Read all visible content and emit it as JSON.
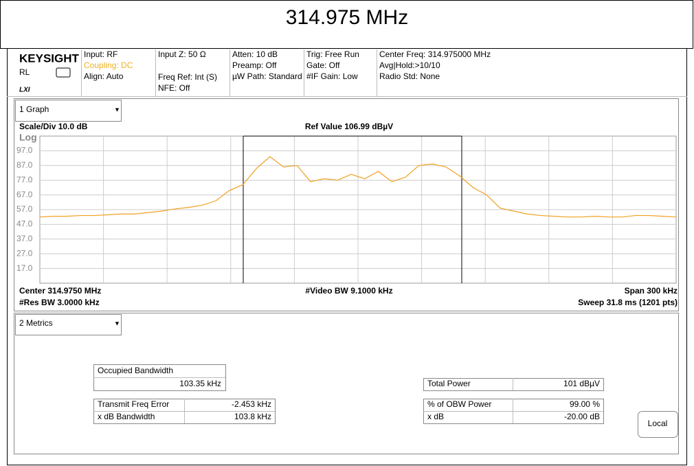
{
  "title": "314.975 MHz",
  "header": {
    "brand": "KEYSIGHT",
    "rl": "RL",
    "lxi": "LXI",
    "columns": [
      [
        "Input: RF",
        "Coupling: DC",
        "Align: Auto"
      ],
      [
        "Input Z: 50 Ω",
        "Freq Ref: Int (S)",
        "NFE: Off"
      ],
      [
        "Atten: 10 dB",
        "Preamp: Off",
        "µW Path: Standard"
      ],
      [
        "Trig: Free Run",
        "Gate: Off",
        "#IF Gain: Low"
      ],
      [
        "Center Freq: 314.975000 MHz",
        "Avg|Hold:>10/10",
        "Radio Std: None"
      ]
    ]
  },
  "graph": {
    "dropdown": "1 Graph",
    "scale": "Scale/Div 10.0 dB",
    "ref": "Ref Value 106.99 dBµV",
    "log": "Log",
    "center": "Center 314.9750 MHz",
    "video_bw": "#Video BW 9.1000 kHz",
    "span": "Span 300 kHz",
    "res_bw": "#Res BW 3.0000 kHz",
    "sweep": "Sweep 31.8 ms (1201 pts)",
    "ylim": [
      6.99,
      106.99
    ],
    "yticks": [
      {
        "value": 96.99,
        "label": "97.0"
      },
      {
        "value": 86.99,
        "label": "87.0"
      },
      {
        "value": 76.99,
        "label": "77.0"
      },
      {
        "value": 66.99,
        "label": "67.0"
      },
      {
        "value": 56.99,
        "label": "57.0"
      },
      {
        "value": 46.99,
        "label": "47.0"
      },
      {
        "value": 36.99,
        "label": "37.0"
      },
      {
        "value": 26.99,
        "label": "27.0"
      },
      {
        "value": 16.99,
        "label": "17.0"
      }
    ],
    "trace": {
      "color": "#f0a020",
      "values": [
        52,
        52.5,
        52.5,
        53,
        53,
        53.5,
        54,
        54,
        55,
        56,
        57.5,
        58.5,
        60,
        63,
        70,
        74,
        85,
        93,
        86,
        87,
        76,
        78,
        77,
        81,
        78,
        83,
        76,
        79,
        87,
        88,
        86,
        80,
        72,
        67,
        58,
        56,
        54,
        53,
        52.5,
        52,
        52,
        52.5,
        52,
        52,
        53,
        53,
        52.5,
        52
      ]
    }
  },
  "metrics": {
    "dropdown": "2 Metrics",
    "occupied_label": "Occupied Bandwidth",
    "occupied_value": "103.35 kHz",
    "left_rows": [
      [
        "Transmit Freq Error",
        "-2.453 kHz"
      ],
      [
        "x dB Bandwidth",
        "103.8 kHz"
      ]
    ],
    "total_power": [
      "Total Power",
      "101 dBµV"
    ],
    "right_rows": [
      [
        "% of OBW Power",
        "99.00 %"
      ],
      [
        "x dB",
        "-20.00 dB"
      ]
    ],
    "button": "Local"
  }
}
